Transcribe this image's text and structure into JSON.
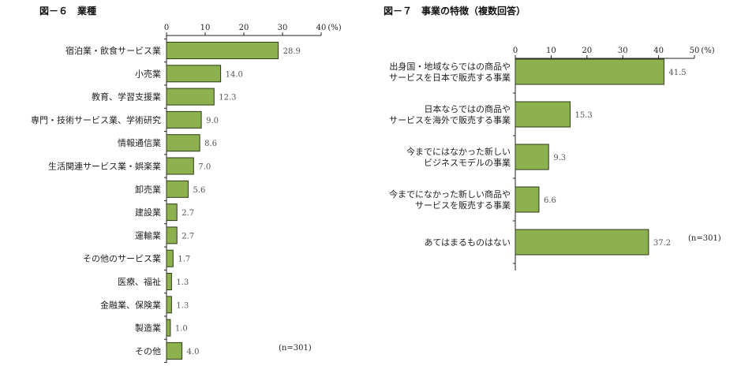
{
  "chart_data": [
    {
      "type": "bar",
      "orientation": "horizontal",
      "title": "図－６　業種",
      "categories": [
        "宿泊業・飲食サービス業",
        "小売業",
        "教育、学習支援業",
        "専門・技術サービス業、学術研究",
        "情報通信業",
        "生活関連サービス業・娯楽業",
        "卸売業",
        "建設業",
        "運輸業",
        "その他のサービス業",
        "医療、福祉",
        "金融業、保険業",
        "製造業",
        "その他"
      ],
      "values": [
        28.9,
        14.0,
        12.3,
        9.0,
        8.6,
        7.0,
        5.6,
        2.7,
        2.7,
        1.7,
        1.3,
        1.3,
        1.0,
        4.0
      ],
      "value_labels": [
        "28.9",
        "14.0",
        "12.3",
        "9.0",
        "8.6",
        "7.0",
        "5.6",
        "2.7",
        "2.7",
        "1.7",
        "1.3",
        "1.3",
        "1.0",
        "4.0"
      ],
      "xlim": [
        0,
        40
      ],
      "ticks": [
        0,
        10,
        20,
        30,
        40
      ],
      "tick_labels": [
        "0",
        "10",
        "20",
        "30",
        "40"
      ],
      "unit": "(%)",
      "note": "(n=301)",
      "bar_color": "#8db14e",
      "bar_edge": "#2e3a18",
      "grid": false
    },
    {
      "type": "bar",
      "orientation": "horizontal",
      "title": "図－７　事業の特徴（複数回答）",
      "categories": [
        [
          "出身国・地域ならではの商品や",
          "サービスを日本で販売する事業"
        ],
        [
          "日本ならではの商品や",
          "サービスを海外で販売する事業"
        ],
        [
          "今までにはなかった新しい",
          "ビジネスモデルの事業"
        ],
        [
          "今までになかった新しい商品や",
          "サービスを販売する事業"
        ],
        [
          "あてはまるものはない"
        ]
      ],
      "values": [
        41.5,
        15.3,
        9.3,
        6.6,
        37.2
      ],
      "value_labels": [
        "41.5",
        "15.3",
        "9.3",
        "6.6",
        "37.2"
      ],
      "xlim": [
        0,
        50
      ],
      "ticks": [
        0,
        10,
        20,
        30,
        40,
        50
      ],
      "tick_labels": [
        "0",
        "10",
        "20",
        "30",
        "40",
        "50"
      ],
      "unit": "(%)",
      "note": "(n=301)",
      "bar_color": "#8db14e",
      "bar_edge": "#2e3a18",
      "grid": false
    }
  ]
}
